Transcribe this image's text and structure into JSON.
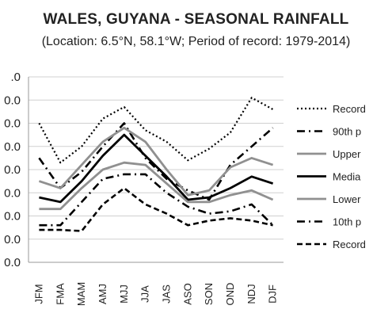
{
  "chart_data": {
    "type": "line",
    "title": "WALES, GUYANA - SEASONAL RAINFALL",
    "subtitle": "(Location: 6.5°N, 58.1°W; Period of record: 1979-2014)",
    "categories": [
      "JFM",
      "FMA",
      "MAM",
      "AMJ",
      "MJJ",
      "JJA",
      "JAS",
      "ASO",
      "SON",
      "OND",
      "NDJ",
      "DJF"
    ],
    "y_tick_labels_visible": [
      ".0",
      "0.0",
      "0.0",
      "0.0",
      "0.0",
      "0.0",
      "0.0",
      "0.0",
      "0.0"
    ],
    "ylim": [
      0,
      8
    ],
    "grid": true,
    "legend_position": "right",
    "series": [
      {
        "name": "Record",
        "style": "dotted",
        "color": "#000000",
        "values": [
          6.0,
          4.3,
          5.0,
          6.2,
          6.7,
          5.7,
          5.2,
          4.4,
          4.9,
          5.6,
          7.1,
          6.6
        ]
      },
      {
        "name": "90th p",
        "style": "dashdot",
        "color": "#000000",
        "values": [
          4.5,
          3.2,
          3.9,
          5.0,
          6.0,
          4.5,
          3.6,
          3.1,
          2.7,
          4.2,
          5.0,
          5.8
        ]
      },
      {
        "name": "Upper",
        "style": "solid",
        "color": "#909090",
        "values": [
          3.5,
          3.2,
          4.2,
          5.2,
          5.8,
          5.2,
          4.0,
          2.9,
          3.1,
          4.1,
          4.5,
          4.2
        ]
      },
      {
        "name": "Media",
        "style": "solid",
        "color": "#000000",
        "values": [
          2.8,
          2.6,
          3.5,
          4.6,
          5.5,
          4.6,
          3.7,
          2.7,
          2.8,
          3.2,
          3.7,
          3.4
        ]
      },
      {
        "name": "Lower",
        "style": "solid",
        "color": "#909090",
        "values": [
          2.3,
          2.3,
          3.2,
          4.0,
          4.3,
          4.2,
          3.4,
          2.6,
          2.6,
          2.9,
          3.1,
          2.7
        ]
      },
      {
        "name": "10th p",
        "style": "dashdot",
        "color": "#000000",
        "values": [
          1.6,
          1.6,
          2.6,
          3.6,
          3.8,
          3.8,
          3.0,
          2.4,
          2.1,
          2.2,
          2.5,
          1.6
        ]
      },
      {
        "name": "Record",
        "style": "dashed",
        "color": "#000000",
        "values": [
          1.4,
          1.4,
          1.35,
          2.5,
          3.2,
          2.5,
          2.1,
          1.6,
          1.8,
          1.9,
          1.8,
          1.6
        ]
      }
    ]
  }
}
